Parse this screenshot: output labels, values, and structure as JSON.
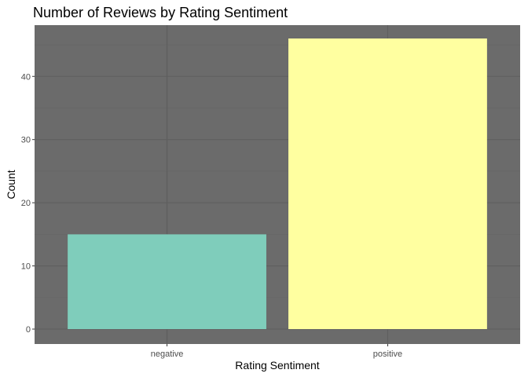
{
  "chart_data": {
    "type": "bar",
    "title": "Number of Reviews by Rating Sentiment",
    "xlabel": "Rating Sentiment",
    "ylabel": "Count",
    "categories": [
      "negative",
      "positive"
    ],
    "values": [
      15,
      46
    ],
    "ylim": [
      0,
      47.55
    ],
    "yticks": [
      0,
      10,
      20,
      30,
      40
    ],
    "grid": true,
    "legend": "none",
    "colors": {
      "panel_background": "#6b6b6b",
      "grid_major": "#5e5e5e",
      "grid_minor": "#656565",
      "bars": [
        "#7fcdbb",
        "#ffffa0"
      ],
      "tick_text": "#4d4d4d"
    }
  }
}
